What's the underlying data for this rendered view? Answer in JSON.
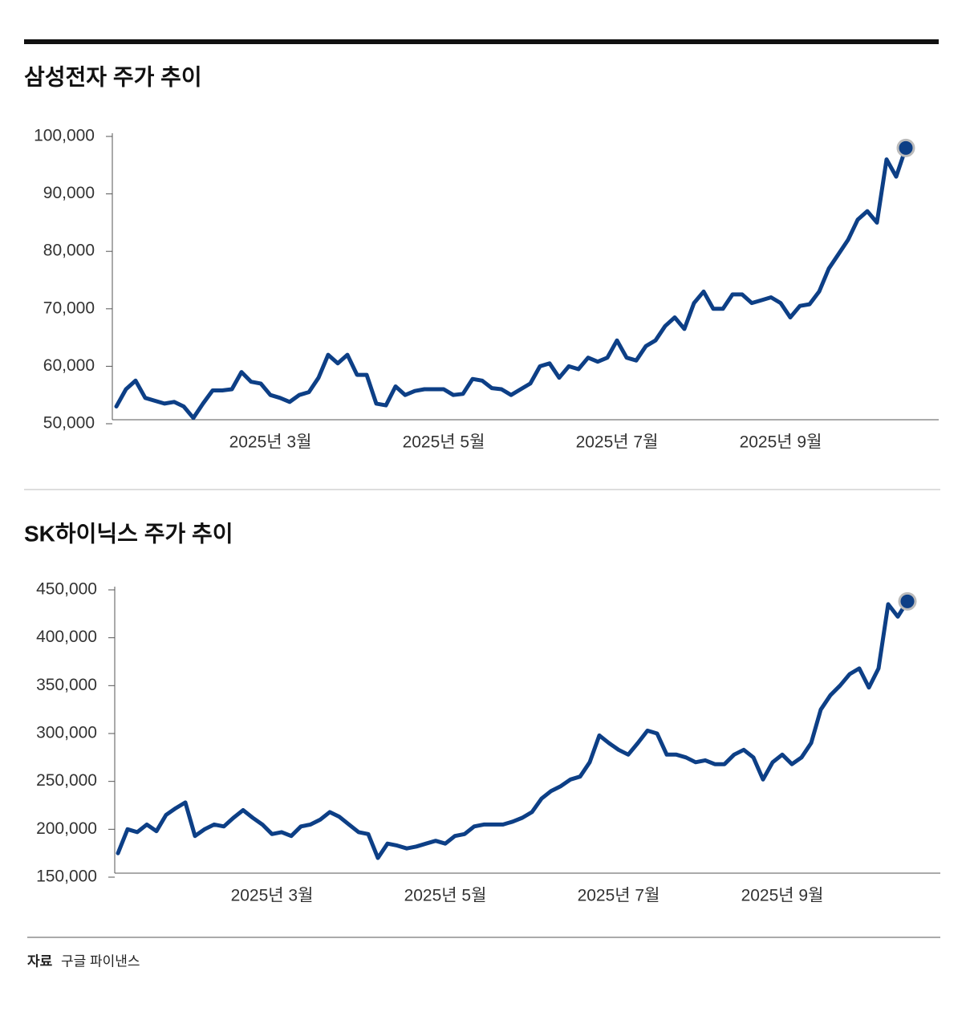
{
  "chart_data": [
    {
      "type": "line",
      "title": "삼성전자 주가 추이",
      "color": "#0d3f86",
      "categories": [
        null,
        null,
        null,
        null,
        null,
        null,
        null,
        null,
        null,
        null,
        null,
        null,
        null,
        null,
        null,
        null,
        "2025년 3월",
        null,
        null,
        null,
        null,
        null,
        null,
        null,
        null,
        null,
        null,
        null,
        null,
        null,
        null,
        null,
        null,
        null,
        "2025년 5월",
        null,
        null,
        null,
        null,
        null,
        null,
        null,
        null,
        null,
        null,
        null,
        null,
        null,
        null,
        null,
        null,
        null,
        "2025년 7월",
        null,
        null,
        null,
        null,
        null,
        null,
        null,
        null,
        null,
        null,
        null,
        null,
        null,
        null,
        null,
        null,
        "2025년 9월",
        null,
        null,
        null,
        null,
        null,
        null,
        null,
        null,
        null,
        null,
        null,
        null,
        null
      ],
      "values": [
        53000,
        56000,
        57500,
        54500,
        54000,
        53500,
        53800,
        53000,
        51000,
        53500,
        55800,
        55800,
        56000,
        59000,
        57300,
        57000,
        55000,
        54500,
        53800,
        55000,
        55500,
        58000,
        62000,
        60500,
        62000,
        58500,
        58500,
        53500,
        53200,
        56500,
        55000,
        55700,
        56000,
        56000,
        56000,
        55000,
        55200,
        57800,
        57500,
        56200,
        56000,
        55000,
        56000,
        57000,
        60000,
        60500,
        58000,
        60000,
        59500,
        61500,
        60800,
        61500,
        64500,
        61500,
        61000,
        63500,
        64500,
        67000,
        68500,
        66500,
        71000,
        73000,
        70000,
        70000,
        72500,
        72500,
        71000,
        71500,
        72000,
        71000,
        68500,
        70500,
        70800,
        73000,
        77000,
        79500,
        82000,
        85500,
        87000,
        85000,
        96000,
        93000,
        98000
      ],
      "ylim": [
        50000,
        100000
      ],
      "yticks": [
        {
          "value": 50000,
          "label": "50,000"
        },
        {
          "value": 60000,
          "label": "60,000"
        },
        {
          "value": 70000,
          "label": "70,000"
        },
        {
          "value": 80000,
          "label": "80,000"
        },
        {
          "value": 90000,
          "label": "90,000"
        },
        {
          "value": 100000,
          "label": "100,000"
        }
      ]
    },
    {
      "type": "line",
      "title": "SK하이닉스 주가 추이",
      "color": "#0d3f86",
      "categories": [
        null,
        null,
        null,
        null,
        null,
        null,
        null,
        null,
        null,
        null,
        null,
        null,
        null,
        null,
        null,
        null,
        "2025년 3월",
        null,
        null,
        null,
        null,
        null,
        null,
        null,
        null,
        null,
        null,
        null,
        null,
        null,
        null,
        null,
        null,
        null,
        "2025년 5월",
        null,
        null,
        null,
        null,
        null,
        null,
        null,
        null,
        null,
        null,
        null,
        null,
        null,
        null,
        null,
        null,
        null,
        "2025년 7월",
        null,
        null,
        null,
        null,
        null,
        null,
        null,
        null,
        null,
        null,
        null,
        null,
        null,
        null,
        null,
        null,
        "2025년 9월",
        null,
        null,
        null,
        null,
        null,
        null,
        null,
        null,
        null,
        null,
        null,
        null,
        null
      ],
      "values": [
        175000,
        200000,
        197000,
        205000,
        198000,
        215000,
        222000,
        228000,
        193000,
        200000,
        205000,
        203000,
        212000,
        220000,
        212000,
        205000,
        195000,
        197000,
        193000,
        203000,
        205000,
        210000,
        218000,
        213000,
        205000,
        197000,
        195000,
        170000,
        185000,
        183000,
        180000,
        182000,
        185000,
        188000,
        185000,
        193000,
        195000,
        203000,
        205000,
        205000,
        205000,
        208000,
        212000,
        218000,
        232000,
        240000,
        245000,
        252000,
        255000,
        270000,
        298000,
        290000,
        283000,
        278000,
        290000,
        303000,
        300000,
        278000,
        278000,
        275000,
        270000,
        272000,
        268000,
        268000,
        278000,
        283000,
        275000,
        252000,
        270000,
        278000,
        268000,
        275000,
        290000,
        325000,
        340000,
        350000,
        362000,
        368000,
        348000,
        368000,
        435000,
        422000,
        438000
      ],
      "ylim": [
        150000,
        450000
      ],
      "yticks": [
        {
          "value": 150000,
          "label": "150,000"
        },
        {
          "value": 200000,
          "label": "200,000"
        },
        {
          "value": 250000,
          "label": "250,000"
        },
        {
          "value": 300000,
          "label": "300,000"
        },
        {
          "value": 350000,
          "label": "350,000"
        },
        {
          "value": 400000,
          "label": "400,000"
        },
        {
          "value": 450000,
          "label": "450,000"
        }
      ]
    }
  ],
  "source": {
    "label": "자료",
    "text": "구글 파이낸스"
  }
}
